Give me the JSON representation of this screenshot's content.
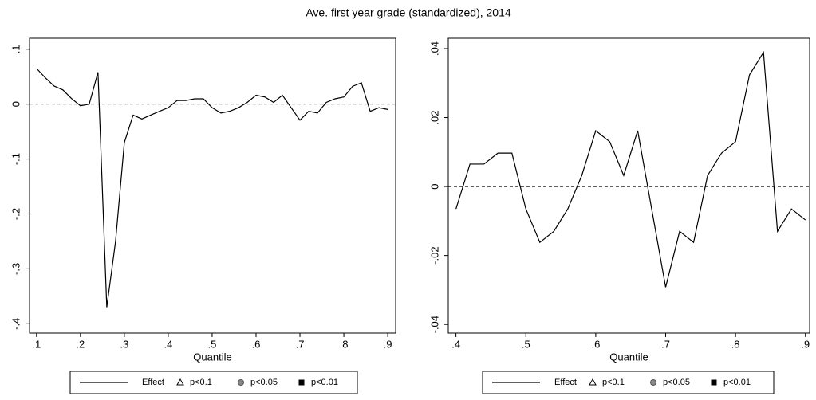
{
  "title": "Ave. first year grade (standardized), 2014",
  "chart_data": [
    {
      "type": "line",
      "xlabel": "Quantile",
      "hline": 0,
      "x": [
        0.1,
        0.12,
        0.14,
        0.16,
        0.18,
        0.2,
        0.22,
        0.24,
        0.26,
        0.28,
        0.3,
        0.32,
        0.34,
        0.36,
        0.38,
        0.4,
        0.42,
        0.44,
        0.46,
        0.48,
        0.5,
        0.52,
        0.54,
        0.56,
        0.58,
        0.6,
        0.62,
        0.64,
        0.66,
        0.68,
        0.7,
        0.72,
        0.74,
        0.76,
        0.78,
        0.8,
        0.82,
        0.84,
        0.86,
        0.88,
        0.9
      ],
      "series": [
        {
          "name": "Effect",
          "color": "#000000",
          "values": [
            0.065,
            0.048,
            0.033,
            0.026,
            0.01,
            -0.003,
            0.0,
            0.058,
            -0.37,
            -0.25,
            -0.07,
            -0.02,
            -0.027,
            -0.02,
            -0.013,
            -0.0065,
            0.0065,
            0.0065,
            0.0097,
            0.0097,
            -0.0065,
            -0.0162,
            -0.013,
            -0.0065,
            0.0032,
            0.0162,
            0.013,
            0.0032,
            0.0162,
            -0.0065,
            -0.0292,
            -0.013,
            -0.0162,
            0.0032,
            0.0097,
            0.013,
            0.0324,
            0.0389,
            -0.013,
            -0.0065,
            -0.0097
          ]
        }
      ],
      "marker_legend": [
        {
          "label": "p<0.1",
          "marker": "triangle"
        },
        {
          "label": "p<0.05",
          "marker": "circle"
        },
        {
          "label": "p<0.01",
          "marker": "square"
        }
      ],
      "xlim": [
        0.084,
        0.918
      ],
      "ylim": [
        -0.417,
        0.12
      ],
      "xticks": [
        {
          "value": 0.1,
          "label": ".1"
        },
        {
          "value": 0.2,
          "label": ".2"
        },
        {
          "value": 0.3,
          "label": ".3"
        },
        {
          "value": 0.4,
          "label": ".4"
        },
        {
          "value": 0.5,
          "label": ".5"
        },
        {
          "value": 0.6,
          "label": ".6"
        },
        {
          "value": 0.7,
          "label": ".7"
        },
        {
          "value": 0.8,
          "label": ".8"
        },
        {
          "value": 0.9,
          "label": ".9"
        }
      ],
      "yticks": [
        {
          "value": -0.4,
          "label": "-.4"
        },
        {
          "value": -0.3,
          "label": "-.3"
        },
        {
          "value": -0.2,
          "label": "-.2"
        },
        {
          "value": -0.1,
          "label": "-.1"
        },
        0,
        {
          "value": 0.1,
          "label": ".1"
        }
      ]
    },
    {
      "type": "line",
      "xlabel": "Quantile",
      "hline": 0,
      "x": [
        0.4,
        0.42,
        0.44,
        0.46,
        0.48,
        0.5,
        0.52,
        0.54,
        0.56,
        0.58,
        0.6,
        0.62,
        0.64,
        0.66,
        0.68,
        0.7,
        0.72,
        0.74,
        0.76,
        0.78,
        0.8,
        0.82,
        0.84,
        0.86,
        0.88,
        0.9
      ],
      "series": [
        {
          "name": "Effect",
          "color": "#000000",
          "values": [
            -0.0065,
            0.0065,
            0.0065,
            0.0097,
            0.0097,
            -0.0065,
            -0.0162,
            -0.013,
            -0.0065,
            0.0032,
            0.0162,
            0.013,
            0.0032,
            0.0162,
            -0.0065,
            -0.0292,
            -0.013,
            -0.0162,
            0.0032,
            0.0097,
            0.013,
            0.0324,
            0.0389,
            -0.013,
            -0.0065,
            -0.0097
          ]
        }
      ],
      "marker_legend": [
        {
          "label": "p<0.1",
          "marker": "triangle"
        },
        {
          "label": "p<0.05",
          "marker": "circle"
        },
        {
          "label": "p<0.01",
          "marker": "square"
        }
      ],
      "xlim": [
        0.389,
        0.906
      ],
      "ylim": [
        -0.0425,
        0.043
      ],
      "xticks": [
        {
          "value": 0.4,
          "label": ".4"
        },
        {
          "value": 0.5,
          "label": ".5"
        },
        {
          "value": 0.6,
          "label": ".6"
        },
        {
          "value": 0.7,
          "label": ".7"
        },
        {
          "value": 0.8,
          "label": ".8"
        },
        {
          "value": 0.9,
          "label": ".9"
        }
      ],
      "yticks": [
        {
          "value": -0.04,
          "label": "-.04"
        },
        {
          "value": -0.02,
          "label": "-.02"
        },
        0,
        {
          "value": 0.02,
          "label": ".02"
        },
        {
          "value": 0.04,
          "label": ".04"
        }
      ]
    }
  ]
}
